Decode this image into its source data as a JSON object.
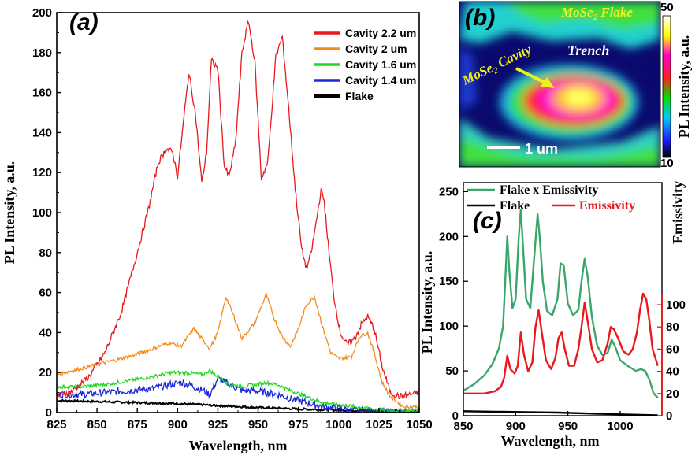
{
  "chart_data": [
    {
      "panel": "(a)",
      "type": "line",
      "xlabel": "Wavelength, nm",
      "ylabel": "PL Intensity, a.u.",
      "xlim": [
        825,
        1050
      ],
      "ylim": [
        0,
        200
      ],
      "xticks": [
        825,
        850,
        875,
        900,
        925,
        950,
        975,
        1000,
        1025,
        1050
      ],
      "yticks": [
        0,
        20,
        40,
        60,
        80,
        100,
        120,
        140,
        160,
        180,
        200
      ],
      "legend_position": "top-right",
      "series": [
        {
          "name": "Cavity 2.2 um",
          "color": "#e8181c",
          "x": [
            825,
            835,
            845,
            855,
            865,
            875,
            882,
            888,
            893,
            897,
            900,
            904,
            907,
            911,
            915,
            918,
            921,
            925,
            929,
            932,
            936,
            940,
            944,
            948,
            952,
            956,
            961,
            965,
            969,
            973,
            977,
            980,
            983,
            986,
            989,
            991,
            994,
            997,
            1001,
            1005,
            1010,
            1014,
            1018,
            1022,
            1027,
            1032,
            1038,
            1044,
            1050
          ],
          "y": [
            8,
            11,
            18,
            30,
            50,
            80,
            102,
            125,
            132,
            130,
            118,
            148,
            170,
            150,
            115,
            130,
            176,
            172,
            123,
            118,
            135,
            180,
            196,
            175,
            117,
            125,
            178,
            188,
            152,
            112,
            82,
            72,
            80,
            95,
            111,
            106,
            80,
            58,
            40,
            34,
            37,
            44,
            48,
            42,
            23,
            10,
            8,
            9,
            10
          ]
        },
        {
          "name": "Cavity 2 um",
          "color": "#f28c1c",
          "x": [
            825,
            840,
            855,
            870,
            885,
            895,
            902,
            910,
            915,
            920,
            925,
            930,
            935,
            940,
            948,
            955,
            960,
            965,
            970,
            975,
            980,
            985,
            990,
            995,
            1000,
            1008,
            1013,
            1018,
            1022,
            1027,
            1032,
            1040,
            1050
          ],
          "y": [
            19,
            22,
            25,
            28,
            32,
            35,
            33,
            42,
            37,
            32,
            40,
            58,
            48,
            37,
            45,
            59,
            47,
            38,
            33,
            42,
            54,
            58,
            43,
            30,
            27,
            28,
            38,
            40,
            30,
            15,
            8,
            3,
            3
          ]
        },
        {
          "name": "Cavity 1.6 um",
          "color": "#22d622",
          "x": [
            825,
            840,
            855,
            870,
            885,
            895,
            905,
            915,
            920,
            925,
            932,
            940,
            948,
            955,
            962,
            970,
            980,
            990,
            1000,
            1010,
            1020,
            1030,
            1040,
            1050
          ],
          "y": [
            13,
            13,
            14,
            16,
            18,
            20,
            20,
            19,
            21,
            18,
            14,
            13,
            14,
            15,
            14,
            11,
            8,
            5,
            4,
            3,
            2,
            1,
            1,
            1
          ]
        },
        {
          "name": "Cavity 1.4 um",
          "color": "#1a28d8",
          "x": [
            825,
            840,
            855,
            870,
            885,
            895,
            903,
            910,
            916,
            920,
            925,
            930,
            935,
            940,
            948,
            955,
            962,
            970,
            980,
            990,
            1000,
            1010,
            1020,
            1035,
            1050
          ],
          "y": [
            9,
            9,
            10,
            11,
            12,
            14,
            15,
            13,
            11,
            9,
            17,
            15,
            13,
            11,
            11,
            10,
            9,
            7,
            5,
            3,
            2,
            1,
            1,
            0,
            0
          ]
        },
        {
          "name": "Flake",
          "color": "#000000",
          "x": [
            825,
            850,
            875,
            900,
            925,
            950,
            975,
            1000,
            1025,
            1050
          ],
          "y": [
            6,
            5.5,
            5,
            4.5,
            3.5,
            2.5,
            1.8,
            1.2,
            0.8,
            0.5
          ]
        }
      ]
    },
    {
      "panel": "(c)",
      "type": "line",
      "xlabel": "Wavelength, nm",
      "ylabel": "PL Intensity, a.u.",
      "y2label": "Emissivity",
      "xlim": [
        850,
        1040
      ],
      "ylim": [
        0,
        260
      ],
      "y2lim": [
        0,
        210
      ],
      "xticks": [
        850,
        900,
        950,
        1000
      ],
      "yticks": [
        0,
        50,
        100,
        150,
        200,
        250
      ],
      "y2ticks": [
        0,
        20,
        40,
        60,
        80,
        100
      ],
      "legend_position": "top",
      "series": [
        {
          "name": "Flake x Emissivity",
          "color": "#3aa76a",
          "axis": "left",
          "x": [
            850,
            860,
            870,
            878,
            884,
            888,
            890,
            892,
            894,
            897,
            900,
            903,
            905,
            907,
            910,
            914,
            918,
            921,
            923,
            926,
            930,
            935,
            940,
            943,
            946,
            950,
            955,
            960,
            963,
            966,
            969,
            973,
            978,
            983,
            988,
            992,
            996,
            1000,
            1008,
            1015,
            1020,
            1024,
            1028,
            1032,
            1036
          ],
          "y": [
            28,
            35,
            45,
            58,
            75,
            100,
            150,
            200,
            160,
            120,
            130,
            200,
            230,
            190,
            130,
            120,
            180,
            225,
            200,
            150,
            117,
            112,
            130,
            170,
            168,
            125,
            112,
            118,
            150,
            175,
            155,
            110,
            78,
            68,
            70,
            85,
            75,
            62,
            55,
            50,
            52,
            50,
            40,
            25,
            20
          ]
        },
        {
          "name": "Flake",
          "color": "#000000",
          "axis": "left",
          "x": [
            850,
            880,
            910,
            940,
            970,
            1000,
            1020,
            1036
          ],
          "y": [
            5,
            4.5,
            4,
            3.5,
            2.5,
            1.5,
            1,
            0.5
          ]
        },
        {
          "name": "Emissivity",
          "color": "#e8181c",
          "axis": "right",
          "x": [
            850,
            870,
            880,
            886,
            889,
            892,
            895,
            899,
            902,
            905,
            908,
            912,
            916,
            919,
            922,
            925,
            929,
            934,
            938,
            941,
            944,
            947,
            951,
            956,
            960,
            963,
            966,
            969,
            973,
            978,
            983,
            988,
            991,
            994,
            998,
            1003,
            1008,
            1012,
            1016,
            1019,
            1022,
            1025,
            1028,
            1031,
            1036
          ],
          "y": [
            20,
            20,
            22,
            26,
            34,
            54,
            42,
            38,
            45,
            75,
            55,
            40,
            48,
            80,
            95,
            75,
            50,
            42,
            52,
            70,
            75,
            60,
            45,
            45,
            60,
            80,
            102,
            85,
            60,
            48,
            50,
            65,
            80,
            78,
            70,
            58,
            55,
            60,
            75,
            95,
            110,
            105,
            85,
            60,
            45
          ]
        }
      ]
    },
    {
      "panel": "(b)",
      "type": "heatmap",
      "colorbar_label": "PL Intensity, a.u.",
      "colorbar_range": [
        10,
        50
      ],
      "annotations": [
        "MoSe₂ Flake",
        "Trench",
        "MoSe₂ Cavity",
        "1 um"
      ]
    }
  ],
  "panel_b": {
    "flake_label": "MoSe",
    "flake_sub": "2",
    "flake_suffix": " Flake",
    "trench_label": "Trench",
    "cavity_label": "MoSe",
    "cavity_sub": "2",
    "cavity_suffix": " Cavity",
    "scale_label": "1 um",
    "cbar_max": "50",
    "cbar_min": "10",
    "cbar_title": "PL Intensity, a.u."
  }
}
